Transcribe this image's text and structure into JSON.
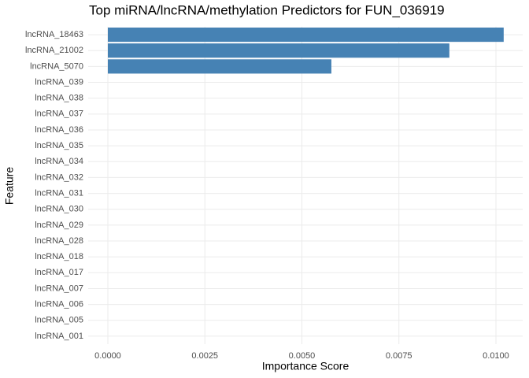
{
  "chart_data": {
    "type": "bar",
    "orientation": "horizontal",
    "title": "Top miRNA/lncRNA/methylation Predictors for FUN_036919",
    "x_label": "Importance Score",
    "y_label": "Feature",
    "categories": [
      "lncRNA_18463",
      "lncRNA_21002",
      "lncRNA_5070",
      "lncRNA_039",
      "lncRNA_038",
      "lncRNA_037",
      "lncRNA_036",
      "lncRNA_035",
      "lncRNA_034",
      "lncRNA_032",
      "lncRNA_031",
      "lncRNA_030",
      "lncRNA_029",
      "lncRNA_028",
      "lncRNA_018",
      "lncRNA_017",
      "lncRNA_007",
      "lncRNA_006",
      "lncRNA_005",
      "lncRNA_001"
    ],
    "values": [
      0.0102,
      0.0088,
      0.00576,
      0,
      0,
      0,
      0,
      0,
      0,
      0,
      0,
      0,
      0,
      0,
      0,
      0,
      0,
      0,
      0,
      0
    ],
    "color": "#4682b4",
    "xlim": [
      -0.000507,
      0.01069
    ],
    "xticks": [
      {
        "value": 0,
        "label": "0.0000"
      },
      {
        "value": 0.0025,
        "label": "0.0025"
      },
      {
        "value": 0.005,
        "label": "0.0050"
      },
      {
        "value": 0.0075,
        "label": "0.0075"
      },
      {
        "value": 0.01,
        "label": "0.0100"
      }
    ],
    "grid": true
  }
}
